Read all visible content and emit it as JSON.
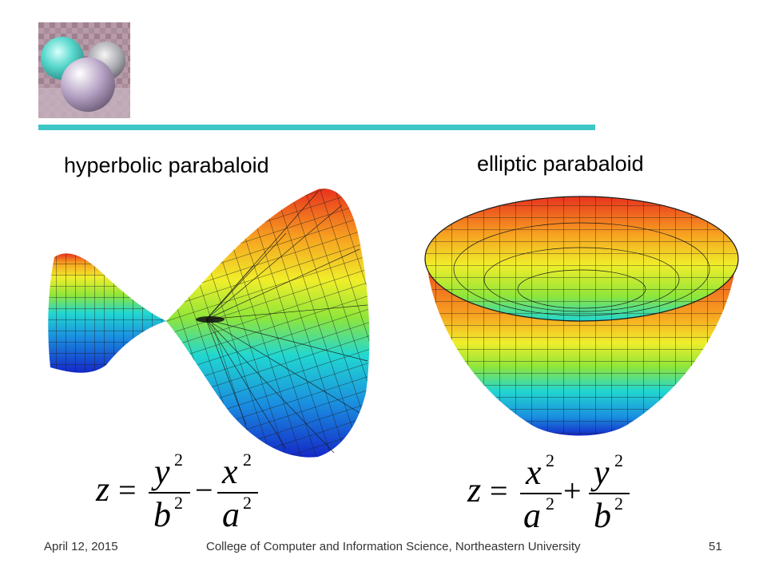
{
  "slide": {
    "label_left": "hyperbolic parabaloid",
    "label_right": "elliptic parabaloid"
  },
  "equations": {
    "left": {
      "lhs": "z",
      "equals": "=",
      "op": "−",
      "num1": "y",
      "num1_sup": "2",
      "den1": "b",
      "den1_sup": "2",
      "num2": "x",
      "num2_sup": "2",
      "den2": "a",
      "den2_sup": "2"
    },
    "right": {
      "lhs": "z",
      "equals": "=",
      "op": "+",
      "num1": "x",
      "num1_sup": "2",
      "den1": "a",
      "den1_sup": "2",
      "num2": "y",
      "num2_sup": "2",
      "den2": "b",
      "den2_sup": "2"
    }
  },
  "footer": {
    "date": "April 12, 2015",
    "center": "College of Computer and Information Science, Northeastern University",
    "page": "51"
  },
  "colors": {
    "accent_rule": "#3cc7c4",
    "colormap": [
      "#1428c8",
      "#1a8fe0",
      "#22d7d0",
      "#8fe63a",
      "#f0ee2a",
      "#f7a020",
      "#e8321e"
    ]
  },
  "icons": {
    "logo": "reflective-spheres-logo",
    "left_figure": "hyperbolic-paraboloid-surface",
    "right_figure": "elliptic-paraboloid-surface"
  }
}
